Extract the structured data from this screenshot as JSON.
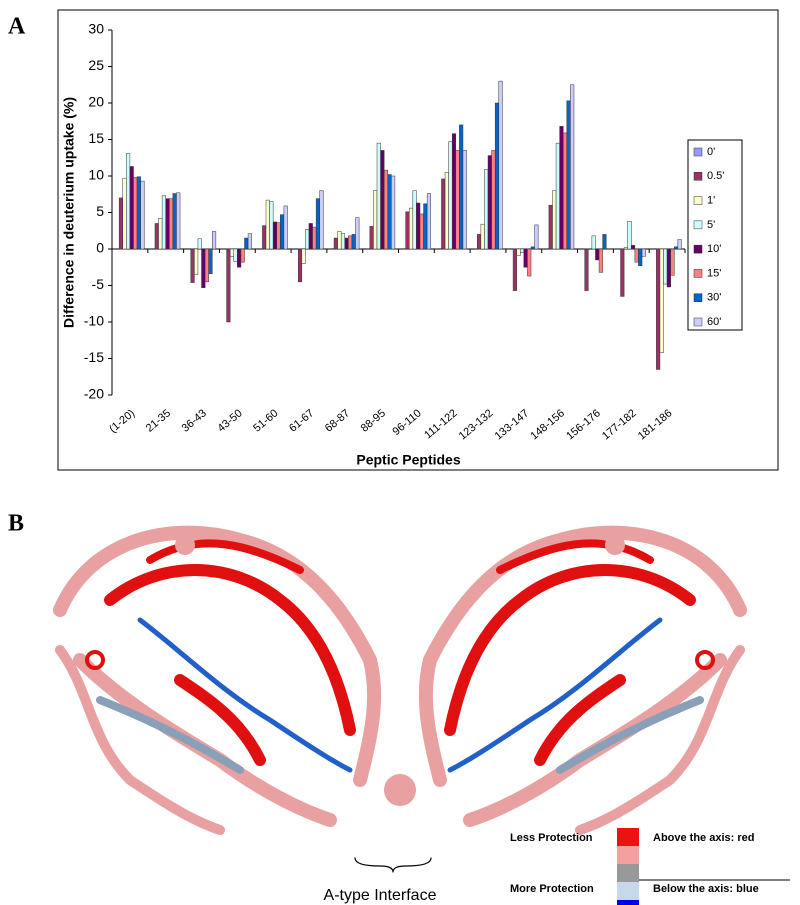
{
  "panels": {
    "a": "A",
    "b": "B"
  },
  "chart_data": {
    "type": "bar",
    "xlabel": "Peptic Peptides",
    "ylabel": "Difference in deuterium uptake (%)",
    "categories": [
      "(1-20)",
      "21-35",
      "36-43",
      "43-50",
      "51-60",
      "61-67",
      "68-87",
      "88-95",
      "96-110",
      "111-122",
      "123-132",
      "133-147",
      "148-156",
      "156-176",
      "177-182",
      "181-186"
    ],
    "series": [
      {
        "name": "0'",
        "color": "#9999ff",
        "values": [
          0,
          0,
          0,
          0,
          0,
          0,
          0,
          0,
          0,
          0,
          0,
          0,
          0,
          0,
          0,
          0
        ]
      },
      {
        "name": "0.5'",
        "color": "#993366",
        "values": [
          7.0,
          3.5,
          -4.6,
          -10.0,
          3.2,
          -4.5,
          1.5,
          3.1,
          5.1,
          9.6,
          2.0,
          -5.7,
          6.0,
          -5.7,
          -6.5,
          -16.5
        ]
      },
      {
        "name": "1'",
        "color": "#ffffcc",
        "values": [
          9.7,
          4.2,
          -3.5,
          -1.0,
          6.7,
          -2.0,
          2.4,
          8.0,
          5.6,
          10.5,
          3.4,
          -0.9,
          8.0,
          0,
          0.2,
          -14.2
        ]
      },
      {
        "name": "5'",
        "color": "#ccffff",
        "values": [
          13.1,
          7.3,
          1.4,
          -1.7,
          6.5,
          2.7,
          2.1,
          14.5,
          8.0,
          14.7,
          10.9,
          -0.5,
          14.5,
          1.8,
          3.8,
          -4.8
        ]
      },
      {
        "name": "10'",
        "color": "#660066",
        "values": [
          11.3,
          6.9,
          -5.3,
          -2.5,
          3.7,
          3.5,
          1.5,
          13.5,
          6.3,
          15.8,
          12.8,
          -2.5,
          16.8,
          -1.5,
          0.5,
          -5.2
        ]
      },
      {
        "name": "15'",
        "color": "#ff8080",
        "values": [
          9.8,
          6.9,
          -4.5,
          -1.8,
          3.6,
          3.0,
          1.8,
          10.8,
          4.8,
          13.5,
          13.5,
          -3.7,
          15.9,
          -3.2,
          -1.8,
          -3.6
        ]
      },
      {
        "name": "30'",
        "color": "#0066cc",
        "values": [
          9.9,
          7.6,
          -3.4,
          1.5,
          4.7,
          6.9,
          2.0,
          10.2,
          6.2,
          17.0,
          20.0,
          0.3,
          20.3,
          2.0,
          -2.3,
          0.3
        ]
      },
      {
        "name": "60'",
        "color": "#ccccff",
        "values": [
          9.3,
          7.7,
          2.4,
          2.1,
          5.9,
          8.0,
          4.3,
          10.0,
          7.6,
          13.5,
          23.0,
          3.3,
          22.5,
          0,
          -1.0,
          1.3
        ]
      }
    ],
    "ylim": [
      -20,
      30
    ],
    "yticks": [
      -20,
      -15,
      -10,
      -5,
      0,
      5,
      10,
      15,
      20,
      25,
      30
    ],
    "grid": false,
    "legend": "right"
  },
  "structure": {
    "interface_label": "A-type Interface",
    "legend": {
      "less": "Less Protection",
      "more": "More Protection",
      "above": "Above the axis: red",
      "below": "Below the axis: blue"
    }
  }
}
